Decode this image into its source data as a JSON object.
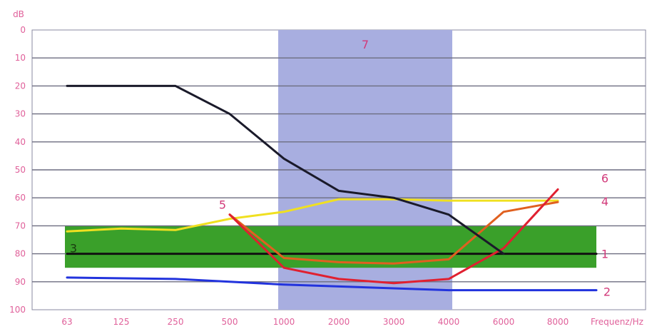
{
  "chart_data": {
    "type": "line",
    "ylabel": "dB",
    "xlabel": "Frequenz/Hz",
    "ylim": [
      0,
      100
    ],
    "y_inverted": true,
    "grid": true,
    "categories": [
      "63",
      "125",
      "250",
      "500",
      "1000",
      "2000",
      "3000",
      "4000",
      "6000",
      "8000"
    ],
    "yticks": [
      "0",
      "10",
      "20",
      "30",
      "40",
      "50",
      "60",
      "70",
      "80",
      "90",
      "100"
    ],
    "shaded_band": {
      "label": "7",
      "x_from": "1000",
      "x_to": "4000",
      "color": "#a8aee0"
    },
    "green_band": {
      "label": "3",
      "y_from": 70,
      "y_to": 85,
      "x_from": "63",
      "x_to": "8000",
      "color": "#3aa02a"
    },
    "series": [
      {
        "label": "1",
        "color": "#111111",
        "values": [
          {
            "x": "63",
            "y": 80
          },
          {
            "x": "8000",
            "y": 80
          }
        ]
      },
      {
        "label": "2",
        "color": "#2233dd",
        "values": [
          {
            "x": "63",
            "y": 88.5
          },
          {
            "x": "250",
            "y": 89
          },
          {
            "x": "1000",
            "y": 91
          },
          {
            "x": "4000",
            "y": 93
          },
          {
            "x": "8000",
            "y": 93
          }
        ]
      },
      {
        "label": "4",
        "color": "#f0e020",
        "values": [
          {
            "x": "63",
            "y": 72
          },
          {
            "x": "125",
            "y": 71
          },
          {
            "x": "250",
            "y": 71.5
          },
          {
            "x": "500",
            "y": 67.5
          },
          {
            "x": "1000",
            "y": 65
          },
          {
            "x": "2000",
            "y": 60.5
          },
          {
            "x": "3000",
            "y": 60.5
          },
          {
            "x": "4000",
            "y": 61
          },
          {
            "x": "6000",
            "y": 61
          },
          {
            "x": "8000",
            "y": 61
          }
        ]
      },
      {
        "label": "5",
        "color": "#e06020",
        "values": [
          {
            "x": "500",
            "y": 66
          },
          {
            "x": "1000",
            "y": 81.5
          },
          {
            "x": "2000",
            "y": 83
          },
          {
            "x": "3000",
            "y": 83.5
          },
          {
            "x": "4000",
            "y": 82
          },
          {
            "x": "6000",
            "y": 65
          },
          {
            "x": "8000",
            "y": 61.5
          }
        ]
      },
      {
        "label": "6",
        "color": "#e02030",
        "values": [
          {
            "x": "500",
            "y": 66
          },
          {
            "x": "1000",
            "y": 85
          },
          {
            "x": "2000",
            "y": 89
          },
          {
            "x": "3000",
            "y": 90.5
          },
          {
            "x": "4000",
            "y": 89
          },
          {
            "x": "6000",
            "y": 78
          },
          {
            "x": "8000",
            "y": 57
          }
        ]
      },
      {
        "color": "#1a1a2a",
        "values": [
          {
            "x": "63",
            "y": 20
          },
          {
            "x": "250",
            "y": 20
          },
          {
            "x": "500",
            "y": 30
          },
          {
            "x": "1000",
            "y": 46
          },
          {
            "x": "2000",
            "y": 57.5
          },
          {
            "x": "3000",
            "y": 60
          },
          {
            "x": "4000",
            "y": 66
          },
          {
            "x": "6000",
            "y": 80
          }
        ]
      }
    ]
  }
}
